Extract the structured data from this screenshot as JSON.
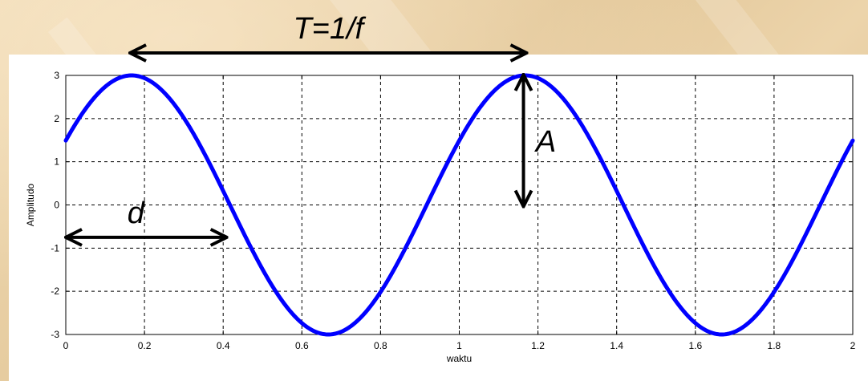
{
  "chart_data": {
    "type": "line",
    "title": "",
    "xlabel": "waktu",
    "ylabel": "Amplitudo",
    "xlim": [
      0,
      2
    ],
    "ylim": [
      -3,
      3
    ],
    "grid": true,
    "x_ticks": [
      "0",
      "0.2",
      "0.4",
      "0.6",
      "0.8",
      "1",
      "1.2",
      "1.4",
      "1.6",
      "1.8",
      "2"
    ],
    "y_ticks": [
      "3",
      "2",
      "1",
      "0",
      "-1",
      "-2",
      "-3"
    ],
    "series": [
      {
        "function": "y = A * sin(2*pi*f*t + phi)",
        "amplitude": 3,
        "frequency": 1,
        "phase_rad": 0.52,
        "t_range": [
          0,
          2
        ],
        "color": "#0000ff"
      }
    ],
    "annotations": {
      "period": "T=1/f",
      "amplitude": "A",
      "delay": "d"
    },
    "annotation_color": "#000000"
  }
}
